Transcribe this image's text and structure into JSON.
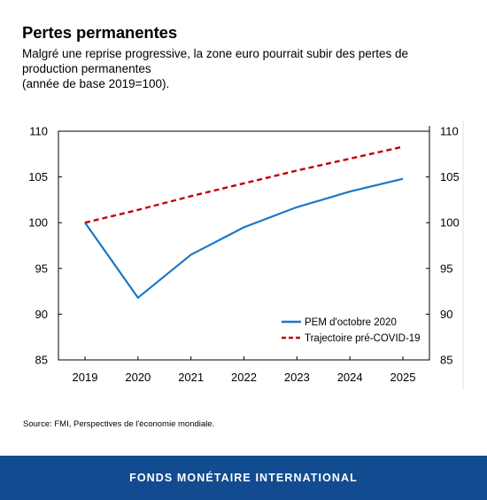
{
  "header": {
    "title": "Pertes permanentes",
    "subtitle_lines": [
      "Malgré une reprise progressive, la zone euro pourrait subir des pertes de",
      "production permanentes",
      "(année de base 2019=100)."
    ]
  },
  "chart_data": {
    "type": "line",
    "x": [
      "2019",
      "2020",
      "2021",
      "2022",
      "2023",
      "2024",
      "2025"
    ],
    "ylim": [
      85,
      110
    ],
    "yticks": [
      85,
      90,
      95,
      100,
      105,
      110
    ],
    "grid": false,
    "legend_position": "bottom-right",
    "series": [
      {
        "name": "PEM d'octobre 2020",
        "values": [
          100,
          91.8,
          96.5,
          99.5,
          101.7,
          103.4,
          104.8
        ],
        "color": "#1a78c8",
        "style": "solid"
      },
      {
        "name": "Trajectoire pré-COVID-19",
        "values": [
          100,
          101.4,
          102.9,
          104.3,
          105.7,
          107.0,
          108.3
        ],
        "color": "#c00000",
        "style": "dashed"
      }
    ]
  },
  "source": "Source: FMI, Perspectives de l'économie mondiale.",
  "footer": "FONDS MONÉTAIRE INTERNATIONAL"
}
